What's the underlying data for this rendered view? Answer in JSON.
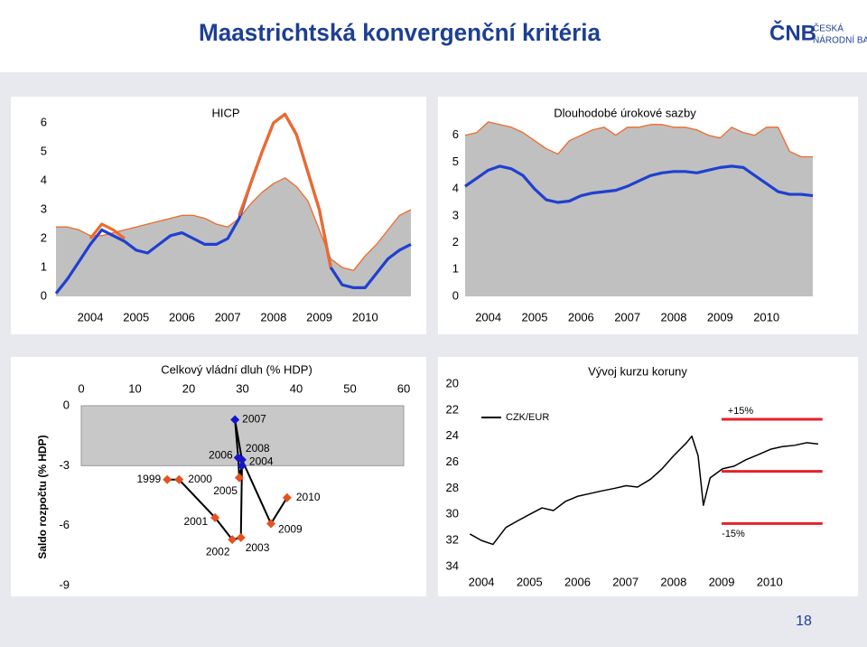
{
  "header": {
    "title": "Maastrichtská konvergenční kritéria",
    "logo": "ČNB",
    "logo_line1": "ČESKÁ",
    "logo_line2": "NÁRODNÍ BANKA"
  },
  "page_number": 18,
  "chart_data": [
    {
      "type": "line",
      "title": "HICP",
      "x": [
        2003.25,
        2003.5,
        2003.75,
        2004,
        2004.25,
        2004.5,
        2004.75,
        2005,
        2005.25,
        2005.5,
        2005.75,
        2006,
        2006.25,
        2006.5,
        2006.75,
        2007,
        2007.25,
        2007.5,
        2007.75,
        2008,
        2008.25,
        2008.5,
        2008.75,
        2009,
        2009.25,
        2009.5,
        2009.75,
        2010,
        2010.25,
        2010.5,
        2010.75,
        2011
      ],
      "series": [
        {
          "color": "#ef6a2a",
          "fill": "#c0c0c0",
          "values": [
            2.4,
            2.4,
            2.3,
            2.1,
            2.1,
            2.2,
            2.3,
            2.4,
            2.5,
            2.6,
            2.7,
            2.8,
            2.8,
            2.7,
            2.5,
            2.4,
            2.7,
            3.2,
            3.6,
            3.9,
            4.1,
            3.8,
            3.3,
            2.3,
            1.3,
            1.0,
            0.9,
            1.4,
            1.8,
            2.3,
            2.8,
            3.0
          ]
        },
        {
          "color": "#1f40d0",
          "values": [
            0.1,
            0.6,
            1.2,
            1.8,
            2.3,
            2.1,
            1.9,
            1.6,
            1.5,
            1.8,
            2.1,
            2.2,
            2.0,
            1.8,
            1.8,
            2.0,
            2.7,
            3.9,
            5.0,
            6.0,
            6.3,
            5.6,
            4.3,
            3.0,
            1.0,
            0.4,
            0.3,
            0.3,
            0.8,
            1.3,
            1.6,
            1.8
          ]
        },
        {
          "color": "#ef6a2a",
          "values": [
            null,
            null,
            null,
            2.0,
            2.5,
            2.3,
            2.0,
            null,
            null,
            null,
            null,
            null,
            null,
            null,
            null,
            null,
            2.8,
            3.9,
            5.0,
            6.0,
            6.3,
            5.6,
            4.3,
            3.0,
            1.0,
            null,
            null,
            null,
            null,
            null,
            null,
            null
          ]
        }
      ],
      "xlim": [
        2003.25,
        2011
      ],
      "xticks": [
        2004,
        2005,
        2006,
        2007,
        2008,
        2009,
        2010
      ],
      "ylim": [
        0,
        6.5
      ],
      "yticks": [
        0,
        1,
        2,
        3,
        4,
        5,
        6
      ]
    },
    {
      "type": "line",
      "title": "Dlouhodobé úrokové sazby",
      "x": [
        2003.5,
        2003.75,
        2004,
        2004.25,
        2004.5,
        2004.75,
        2005,
        2005.25,
        2005.5,
        2005.75,
        2006,
        2006.25,
        2006.5,
        2006.75,
        2007,
        2007.25,
        2007.5,
        2007.75,
        2008,
        2008.25,
        2008.5,
        2008.75,
        2009,
        2009.25,
        2009.5,
        2009.75,
        2010,
        2010.25,
        2010.5,
        2010.75,
        2011
      ],
      "series": [
        {
          "color": "#ef6a2a",
          "fill": "#c0c0c0",
          "values": [
            6.0,
            6.1,
            6.5,
            6.4,
            6.3,
            6.1,
            5.8,
            5.5,
            5.3,
            5.8,
            6.0,
            6.2,
            6.3,
            6.0,
            6.3,
            6.3,
            6.4,
            6.4,
            6.3,
            6.3,
            6.2,
            6.0,
            5.9,
            6.3,
            6.1,
            6.0,
            6.3,
            6.3,
            5.4,
            5.2,
            5.2
          ]
        },
        {
          "color": "#1f40d0",
          "values": [
            4.1,
            4.4,
            4.7,
            4.85,
            4.75,
            4.5,
            4.0,
            3.6,
            3.5,
            3.55,
            3.75,
            3.85,
            3.9,
            3.95,
            4.1,
            4.3,
            4.5,
            4.6,
            4.65,
            4.65,
            4.6,
            4.7,
            4.8,
            4.85,
            4.8,
            4.5,
            4.2,
            3.9,
            3.8,
            3.8,
            3.75
          ]
        }
      ],
      "xlim": [
        2003.5,
        2011
      ],
      "xticks": [
        2004,
        2005,
        2006,
        2007,
        2008,
        2009,
        2010
      ],
      "ylim": [
        0,
        7
      ],
      "yticks": [
        0,
        1,
        2,
        3,
        4,
        5,
        6
      ]
    },
    {
      "type": "scatter",
      "title": "Celkový vládní dluh (% HDP)",
      "y_label": "Saldo rozpočtu (% HDP)",
      "labels": [
        "1999",
        "2000",
        "2001",
        "2002",
        "2003",
        "2004",
        "2005",
        "2006",
        "2007",
        "2008",
        "2009",
        "2010"
      ],
      "x": [
        16.0,
        18.2,
        24.9,
        28.1,
        29.7,
        29.9,
        29.4,
        29.2,
        28.6,
        29.9,
        35.3,
        38.3
      ],
      "values": [
        -3.7,
        -3.7,
        -5.6,
        -6.7,
        -6.6,
        -3.0,
        -3.6,
        -2.6,
        -0.7,
        -2.7,
        -5.9,
        -4.6
      ],
      "colors": [
        "#e8501e",
        "#e8501e",
        "#e8501e",
        "#e8501e",
        "#e8501e",
        "#1515c8",
        "#e8501e",
        "#1515c8",
        "#1515c8",
        "#1515c8",
        "#e8501e",
        "#e8501e"
      ],
      "line_color": "#000000",
      "band": [
        0,
        -3
      ],
      "band_color": "#c8c8c8",
      "x_axis": "top",
      "xlim": [
        0,
        60
      ],
      "xticks": [
        0,
        10,
        20,
        30,
        40,
        50,
        60
      ],
      "ylim": [
        -9,
        0
      ],
      "yticks": [
        0,
        -3,
        -6,
        -9
      ]
    },
    {
      "type": "line",
      "title": "Vývoj kurzu koruny",
      "x": [
        2003.76,
        2004.0,
        2004.24,
        2004.51,
        2004.75,
        2005.0,
        2005.26,
        2005.5,
        2005.75,
        2006.01,
        2006.26,
        2006.5,
        2006.77,
        2007.01,
        2007.25,
        2007.52,
        2007.76,
        2008.0,
        2008.27,
        2008.38,
        2008.51,
        2008.62,
        2008.76,
        2009.02,
        2009.26,
        2009.51,
        2009.77,
        2010.02,
        2010.26,
        2010.52,
        2010.77,
        2011.01
      ],
      "series": [
        {
          "name": "CZK/EUR",
          "color": "#000000",
          "values": [
            31.5,
            32.0,
            32.3,
            31.0,
            30.5,
            30.0,
            29.5,
            29.7,
            29.0,
            28.6,
            28.4,
            28.2,
            28.0,
            27.8,
            27.9,
            27.3,
            26.5,
            25.5,
            24.5,
            24.0,
            25.5,
            29.3,
            27.2,
            26.5,
            26.3,
            25.8,
            25.4,
            25.0,
            24.8,
            24.7,
            24.5,
            24.6
          ]
        }
      ],
      "bands": [
        {
          "name": "+15%",
          "value": 22.7
        },
        {
          "value": 26.7
        },
        {
          "name": "-15%",
          "value": 30.7
        }
      ],
      "band_x": [
        2009.0,
        2011.1
      ],
      "band_color": "#e8202a",
      "y_inverted": true,
      "xlim": [
        2003.66,
        2011.18
      ],
      "xticks": [
        2004,
        2005,
        2006,
        2007,
        2008,
        2009,
        2010
      ],
      "ylim": [
        20,
        34
      ],
      "yticks": [
        20,
        22,
        24,
        26,
        28,
        30,
        32,
        34
      ]
    }
  ]
}
